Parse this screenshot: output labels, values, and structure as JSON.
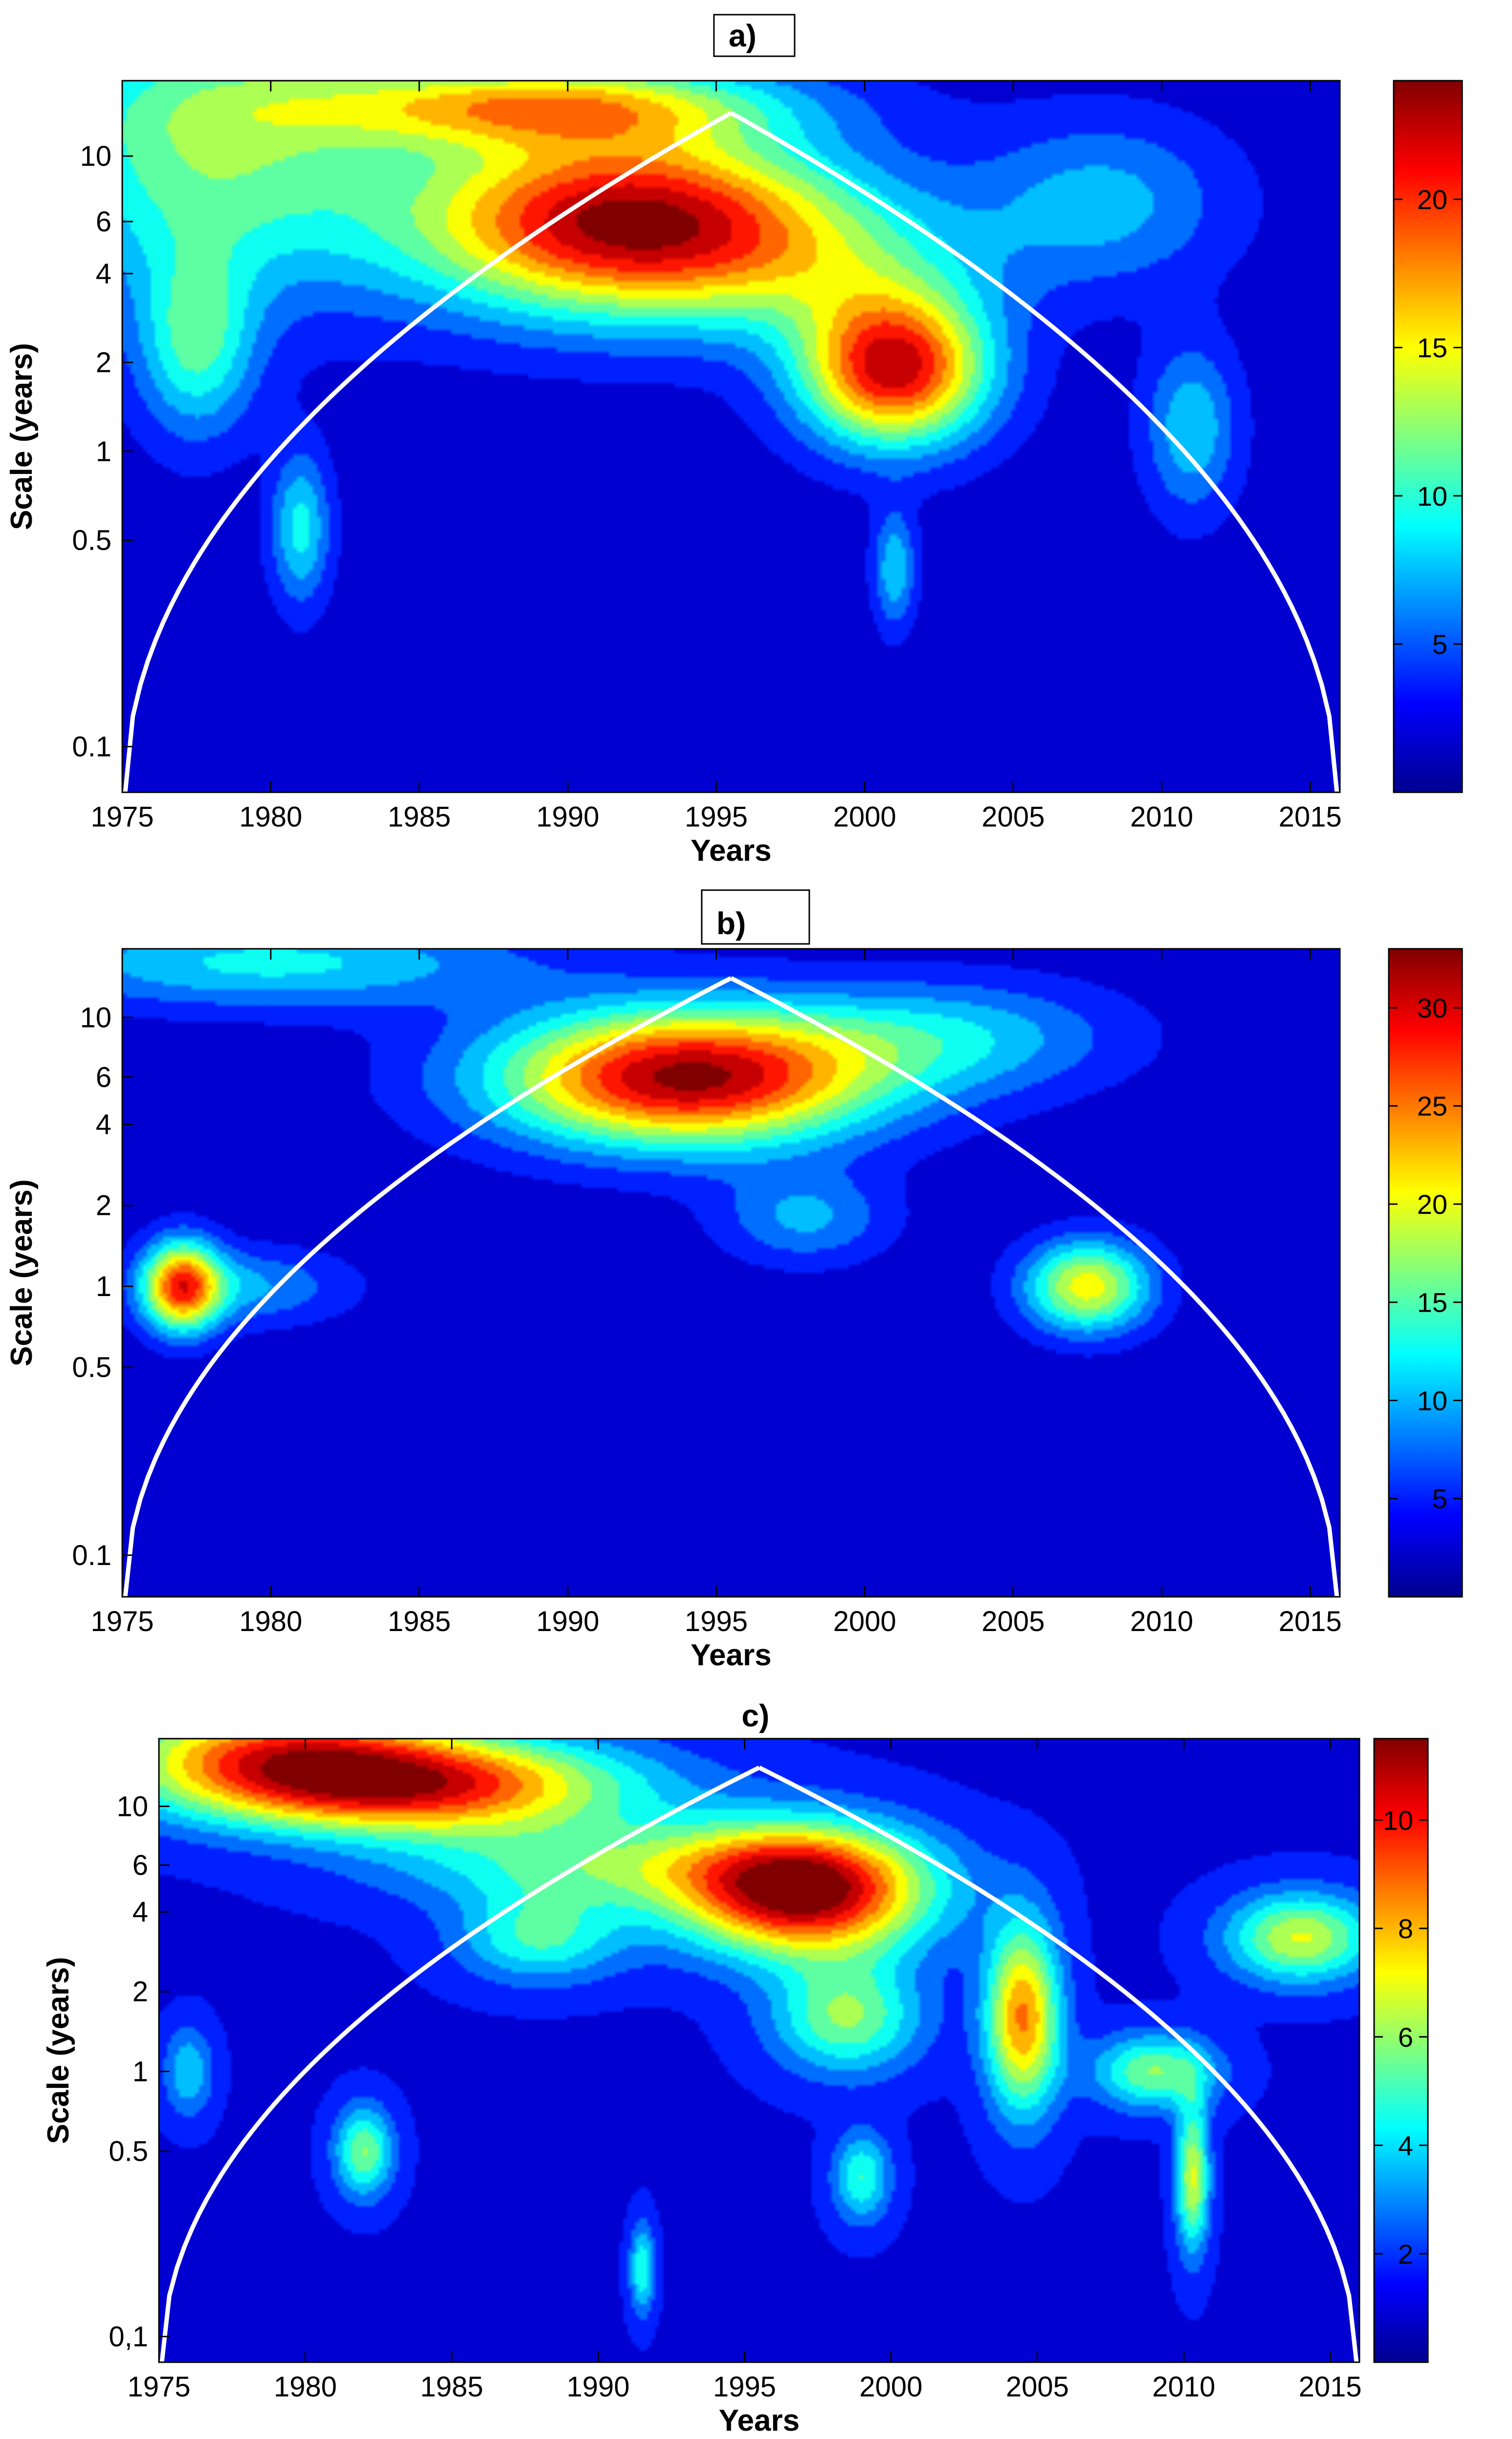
{
  "chart_data": [
    {
      "type": "heatmap",
      "panel_label": "a)",
      "title": "",
      "xlabel": "Years",
      "ylabel": "Scale (years)",
      "x_ticks": [
        1975,
        1980,
        1985,
        1990,
        1995,
        2000,
        2005,
        2010,
        2015
      ],
      "xlim": [
        1975,
        2016
      ],
      "y_ticks": [
        0.1,
        0.5,
        1,
        2,
        4,
        6,
        10
      ],
      "y_tick_labels": [
        "0.1",
        "0.5",
        "1",
        "2",
        "4",
        "6",
        "10"
      ],
      "ylim": [
        0.07,
        18
      ],
      "y_scale": "log",
      "colorbar": {
        "ticks": [
          5,
          10,
          15,
          20
        ],
        "range": [
          0,
          24
        ]
      },
      "cone_of_influence": {
        "apex_year": 1995.5,
        "apex_scale": 14
      },
      "features": [
        {
          "x": 1992,
          "y": 6,
          "sx": 5,
          "sy": 0.22,
          "value": 24
        },
        {
          "x": 2001,
          "y": 1.9,
          "sx": 2.2,
          "sy": 0.18,
          "value": 22
        },
        {
          "x": 1978,
          "y": 11,
          "sx": 4.5,
          "sy": 0.35,
          "value": 11
        },
        {
          "x": 1989,
          "y": 15,
          "sx": 5.5,
          "sy": 0.1,
          "value": 14
        },
        {
          "x": 1977.5,
          "y": 2.3,
          "sx": 1.4,
          "sy": 0.22,
          "value": 9
        },
        {
          "x": 2011,
          "y": 1.2,
          "sx": 1.1,
          "sy": 0.2,
          "value": 7
        },
        {
          "x": 1981,
          "y": 0.55,
          "sx": 0.7,
          "sy": 0.18,
          "value": 8
        },
        {
          "x": 2001,
          "y": 0.4,
          "sx": 0.5,
          "sy": 0.14,
          "value": 7
        },
        {
          "x": 1999,
          "y": 4.2,
          "sx": 4,
          "sy": 0.18,
          "value": 5
        },
        {
          "x": 2008,
          "y": 7,
          "sx": 3,
          "sy": 0.2,
          "value": 6
        }
      ]
    },
    {
      "type": "heatmap",
      "panel_label": "b)",
      "title": "",
      "xlabel": "Years",
      "ylabel": "Scale (years)",
      "x_ticks": [
        1975,
        1980,
        1985,
        1990,
        1995,
        2000,
        2005,
        2010,
        2015
      ],
      "xlim": [
        1975,
        2016
      ],
      "y_ticks": [
        0.1,
        0.5,
        1,
        2,
        4,
        6,
        10
      ],
      "y_tick_labels": [
        "0.1",
        "0.5",
        "1",
        "2",
        "4",
        "6",
        "10"
      ],
      "ylim": [
        0.07,
        18
      ],
      "y_scale": "log",
      "colorbar": {
        "ticks": [
          5,
          10,
          15,
          20,
          25,
          30
        ],
        "range": [
          0,
          33
        ]
      },
      "cone_of_influence": {
        "apex_year": 1995.5,
        "apex_scale": 14
      },
      "features": [
        {
          "x": 1994,
          "y": 6,
          "sx": 4.5,
          "sy": 0.18,
          "value": 33
        },
        {
          "x": 1977,
          "y": 1,
          "sx": 0.9,
          "sy": 0.12,
          "value": 24
        },
        {
          "x": 2007.5,
          "y": 1,
          "sx": 1.5,
          "sy": 0.12,
          "value": 20
        },
        {
          "x": 1980,
          "y": 16,
          "sx": 6,
          "sy": 0.12,
          "value": 11
        },
        {
          "x": 1998,
          "y": 1.8,
          "sx": 2,
          "sy": 0.12,
          "value": 8
        },
        {
          "x": 2003,
          "y": 8.5,
          "sx": 4,
          "sy": 0.15,
          "value": 9
        },
        {
          "x": 1979,
          "y": 1,
          "sx": 2.5,
          "sy": 0.1,
          "value": 8
        }
      ]
    },
    {
      "type": "heatmap",
      "panel_label": "c)",
      "title": "",
      "xlabel": "Years",
      "ylabel": "Scale (years)",
      "x_ticks": [
        1975,
        1980,
        1985,
        1990,
        1995,
        2000,
        2005,
        2010,
        2015
      ],
      "xlim": [
        1975,
        2016
      ],
      "y_ticks": [
        0.1,
        0.5,
        1,
        2,
        4,
        6,
        10
      ],
      "y_tick_labels": [
        "0,1",
        "0.5",
        "1",
        "2",
        "4",
        "6",
        "10"
      ],
      "ylim": [
        0.08,
        18
      ],
      "y_scale": "log",
      "colorbar": {
        "ticks": [
          2,
          4,
          6,
          8,
          10
        ],
        "range": [
          0,
          11.5
        ]
      },
      "cone_of_influence": {
        "apex_year": 1995.5,
        "apex_scale": 14
      },
      "features": [
        {
          "x": 1997,
          "y": 4.8,
          "sx": 3,
          "sy": 0.17,
          "value": 11.5
        },
        {
          "x": 1984,
          "y": 12,
          "sx": 5,
          "sy": 0.13,
          "value": 9
        },
        {
          "x": 1979,
          "y": 16,
          "sx": 4,
          "sy": 0.15,
          "value": 7
        },
        {
          "x": 2004.5,
          "y": 1.6,
          "sx": 0.9,
          "sy": 0.25,
          "value": 8
        },
        {
          "x": 2014,
          "y": 3.2,
          "sx": 1.8,
          "sy": 0.12,
          "value": 6
        },
        {
          "x": 1998.5,
          "y": 1.6,
          "sx": 1.8,
          "sy": 0.15,
          "value": 5
        },
        {
          "x": 2009,
          "y": 1,
          "sx": 1.5,
          "sy": 0.1,
          "value": 5
        },
        {
          "x": 1982,
          "y": 0.5,
          "sx": 0.7,
          "sy": 0.12,
          "value": 5
        },
        {
          "x": 1988,
          "y": 3.2,
          "sx": 2,
          "sy": 0.12,
          "value": 4
        },
        {
          "x": 2010.3,
          "y": 0.4,
          "sx": 0.4,
          "sy": 0.2,
          "value": 6
        },
        {
          "x": 1990,
          "y": 6,
          "sx": 5,
          "sy": 0.12,
          "value": 4
        },
        {
          "x": 1999,
          "y": 0.4,
          "sx": 0.7,
          "sy": 0.12,
          "value": 4
        },
        {
          "x": 1976,
          "y": 1,
          "sx": 0.6,
          "sy": 0.12,
          "value": 3
        },
        {
          "x": 1991.5,
          "y": 0.18,
          "sx": 0.3,
          "sy": 0.12,
          "value": 4
        }
      ]
    }
  ]
}
